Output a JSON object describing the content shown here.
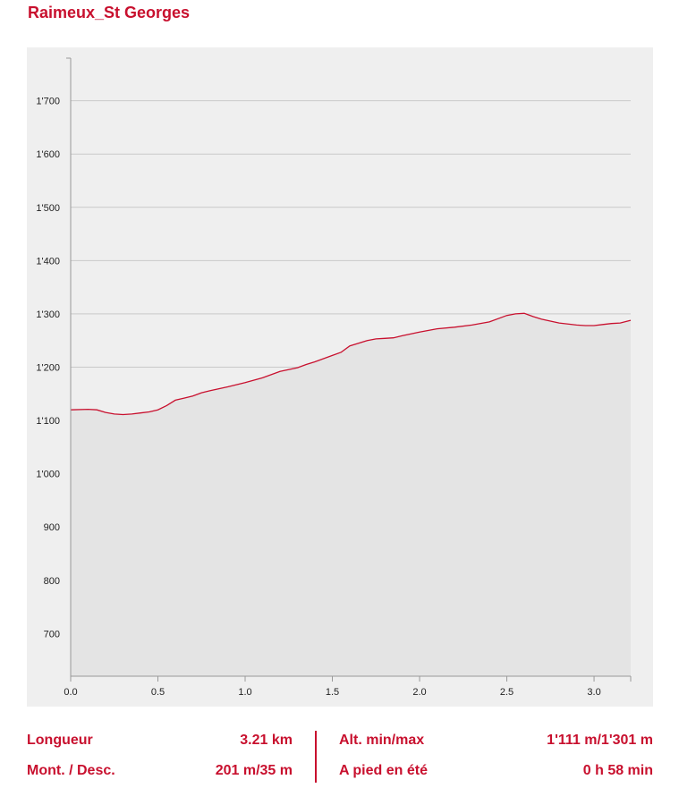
{
  "page": {
    "title": "Raimeux_St Georges",
    "accent": "#c8102e"
  },
  "chart_data": {
    "type": "area",
    "title": "Raimeux_St Georges",
    "xlabel": "",
    "ylabel": "",
    "xlim": [
      0,
      3.21
    ],
    "ylim": [
      620,
      1780
    ],
    "x_ticks": [
      "0.0",
      "0.5",
      "1.0",
      "1.5",
      "2.0",
      "2.5",
      "3.0"
    ],
    "y_ticks": [
      "700",
      "800",
      "900",
      "1'000",
      "1'100",
      "1'200",
      "1'300",
      "1'400",
      "1'500",
      "1'600",
      "1'700"
    ],
    "grid": true,
    "series": [
      {
        "line_color": "#c8102e",
        "fill_color": "#e4e4e4",
        "x": [
          0.0,
          0.1,
          0.15,
          0.2,
          0.25,
          0.3,
          0.35,
          0.4,
          0.45,
          0.5,
          0.55,
          0.6,
          0.65,
          0.7,
          0.75,
          0.8,
          0.9,
          1.0,
          1.1,
          1.2,
          1.3,
          1.35,
          1.4,
          1.5,
          1.55,
          1.6,
          1.65,
          1.7,
          1.75,
          1.8,
          1.85,
          1.9,
          2.0,
          2.1,
          2.2,
          2.3,
          2.4,
          2.5,
          2.55,
          2.6,
          2.65,
          2.7,
          2.8,
          2.9,
          2.95,
          3.0,
          3.05,
          3.1,
          3.15,
          3.21
        ],
        "y": [
          1120,
          1121,
          1120,
          1115,
          1112,
          1111,
          1112,
          1114,
          1116,
          1120,
          1128,
          1138,
          1142,
          1146,
          1152,
          1156,
          1163,
          1171,
          1180,
          1192,
          1199,
          1205,
          1210,
          1222,
          1228,
          1240,
          1245,
          1250,
          1253,
          1254,
          1255,
          1259,
          1266,
          1272,
          1275,
          1279,
          1285,
          1297,
          1300,
          1301,
          1295,
          1290,
          1283,
          1279,
          1278,
          1278,
          1280,
          1282,
          1283,
          1288
        ]
      }
    ]
  },
  "stats": {
    "length_label": "Longueur",
    "length_value": "3.21 km",
    "ascent_label": "Mont. / Desc.",
    "ascent_value": "201 m/35 m",
    "alt_label": "Alt. min/max",
    "alt_value": "1'111 m/1'301 m",
    "time_label": "A pied en été",
    "time_value": "0 h 58 min"
  }
}
